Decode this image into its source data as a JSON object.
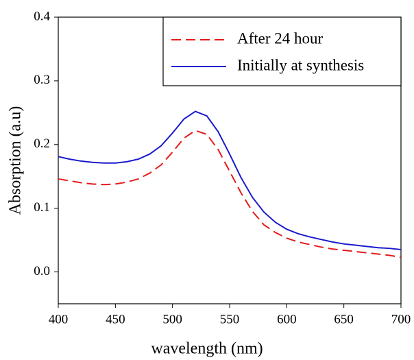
{
  "chart_data": {
    "type": "line",
    "xlabel": "wavelength (nm)",
    "ylabel": "Absorption (a.u)",
    "x": [
      400,
      410,
      420,
      430,
      440,
      450,
      460,
      470,
      480,
      490,
      500,
      510,
      520,
      530,
      540,
      550,
      560,
      570,
      580,
      590,
      600,
      610,
      620,
      630,
      640,
      650,
      660,
      670,
      680,
      690,
      700
    ],
    "series": [
      {
        "name": "After 24 hour",
        "color": "#e41a1c",
        "linestyle": "dashed",
        "values": [
          0.146,
          0.143,
          0.14,
          0.138,
          0.137,
          0.138,
          0.141,
          0.146,
          0.155,
          0.168,
          0.188,
          0.21,
          0.222,
          0.216,
          0.192,
          0.158,
          0.124,
          0.095,
          0.074,
          0.062,
          0.053,
          0.047,
          0.043,
          0.039,
          0.036,
          0.034,
          0.032,
          0.03,
          0.028,
          0.026,
          0.023
        ]
      },
      {
        "name": "Initially at synthesis",
        "color": "#1a1acc",
        "linestyle": "solid",
        "values": [
          0.181,
          0.177,
          0.174,
          0.172,
          0.171,
          0.171,
          0.173,
          0.177,
          0.185,
          0.198,
          0.218,
          0.24,
          0.252,
          0.245,
          0.22,
          0.185,
          0.148,
          0.117,
          0.094,
          0.078,
          0.067,
          0.06,
          0.055,
          0.051,
          0.047,
          0.044,
          0.042,
          0.04,
          0.038,
          0.037,
          0.035
        ]
      }
    ],
    "xlim": [
      400,
      700
    ],
    "xticks": [
      400,
      450,
      500,
      550,
      600,
      650,
      700
    ],
    "ylim": [
      -0.05,
      0.4
    ],
    "yticks": [
      {
        "value": 0,
        "label": "0.0"
      },
      0.1,
      0.2,
      0.3,
      0.4
    ],
    "legend": "upper right"
  }
}
